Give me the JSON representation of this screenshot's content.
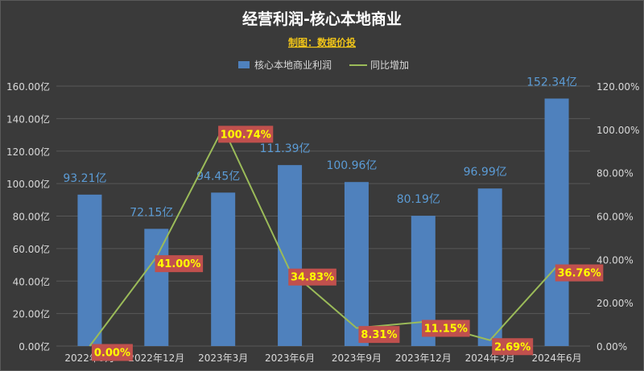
{
  "chart_data": {
    "type": "bar+line",
    "title": "经营利润-核心本地商业",
    "subtitle": "制图：数据价投",
    "categories": [
      "2022年9月",
      "2022年12月",
      "2023年3月",
      "2023年6月",
      "2023年9月",
      "2023年12月",
      "2024年3月",
      "2024年6月"
    ],
    "series": [
      {
        "name": "核心本地商业利润",
        "kind": "bar",
        "axis": "left",
        "values": [
          93.21,
          72.15,
          94.45,
          111.39,
          100.96,
          80.19,
          96.99,
          152.34
        ],
        "labels": [
          "93.21亿",
          "72.15亿",
          "94.45亿",
          "111.39亿",
          "100.96亿",
          "80.19亿",
          "96.99亿",
          "152.34亿"
        ],
        "color": "#4f81bd"
      },
      {
        "name": "同比增加",
        "kind": "line",
        "axis": "right",
        "values": [
          0.0,
          41.0,
          100.74,
          34.83,
          8.31,
          11.15,
          2.69,
          36.76
        ],
        "labels": [
          "0.00%",
          "41.00%",
          "100.74%",
          "34.83%",
          "8.31%",
          "11.15%",
          "2.69%",
          "36.76%"
        ],
        "color": "#9bbb59"
      }
    ],
    "y_left": {
      "min": 0,
      "max": 160,
      "step": 20,
      "ticks": [
        "0.00亿",
        "20.00亿",
        "40.00亿",
        "60.00亿",
        "80.00亿",
        "100.00亿",
        "120.00亿",
        "140.00亿",
        "160.00亿"
      ]
    },
    "y_right": {
      "min": 0,
      "max": 120,
      "step": 20,
      "ticks": [
        "0.00%",
        "20.00%",
        "40.00%",
        "60.00%",
        "80.00%",
        "100.00%",
        "120.00%"
      ]
    },
    "grid": true,
    "legend": "top-center",
    "colors": {
      "background": "#3a3a3a",
      "grid": "#585858",
      "title": "#ffffff",
      "subtitle": "#f0c419",
      "axis_text": "#d9d9d9",
      "bar_label": "#5b9bd5",
      "pct_label_bg": "#c0504d",
      "pct_label_text": "#ffff00"
    }
  }
}
